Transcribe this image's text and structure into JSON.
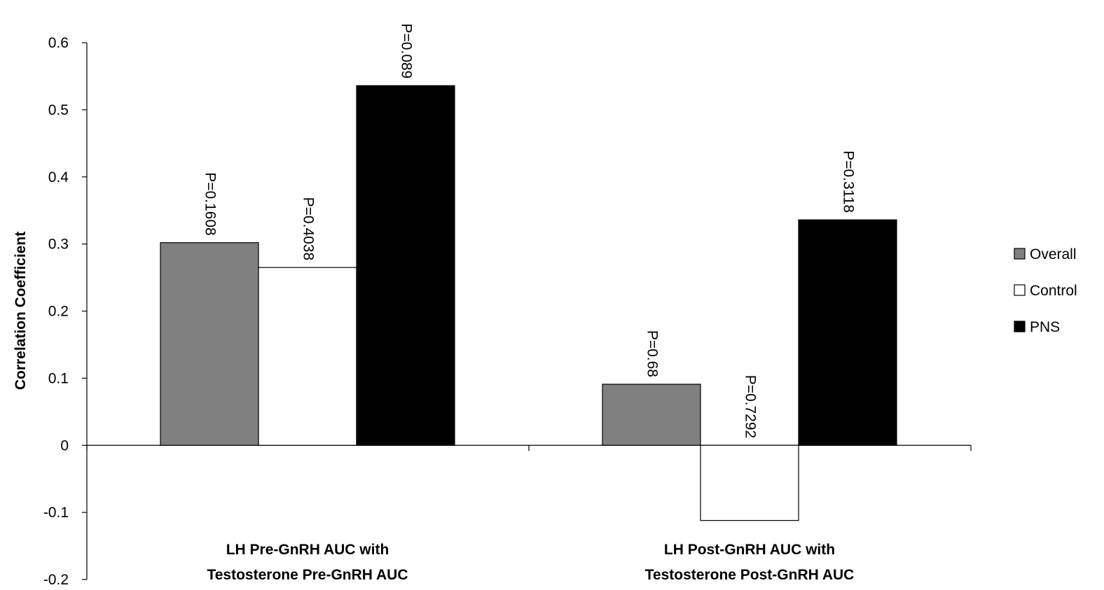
{
  "chart_data": {
    "type": "bar",
    "title": "",
    "ylabel": "Correlation Coefficient",
    "xlabel": "",
    "ylim": [
      -0.2,
      0.6
    ],
    "yticks": [
      -0.2,
      -0.1,
      0,
      0.1,
      0.2,
      0.3,
      0.4,
      0.5,
      0.6
    ],
    "ytick_labels": [
      "-0.2",
      "-0.1",
      "0",
      "0.1",
      "0.2",
      "0.3",
      "0.4",
      "0.5",
      "0.6"
    ],
    "grid": false,
    "legend_position": "right",
    "categories": [
      [
        "LH Pre-GnRH AUC with",
        "Testosterone Pre-GnRH AUC"
      ],
      [
        "LH Post-GnRH AUC with",
        "Testosterone Post-GnRH AUC"
      ]
    ],
    "series": [
      {
        "name": "Overall",
        "color": "#808080",
        "values": [
          0.302,
          0.091
        ],
        "labels": [
          "P=0.1608",
          "P=0.68"
        ]
      },
      {
        "name": "Control",
        "color": "#ffffff",
        "values": [
          0.265,
          -0.112
        ],
        "labels": [
          "P=0.4038",
          "P=0.7292"
        ]
      },
      {
        "name": "PNS",
        "color": "#000000",
        "values": [
          0.536,
          0.336
        ],
        "labels": [
          "P=0.089",
          "P=0.3118"
        ]
      }
    ]
  }
}
